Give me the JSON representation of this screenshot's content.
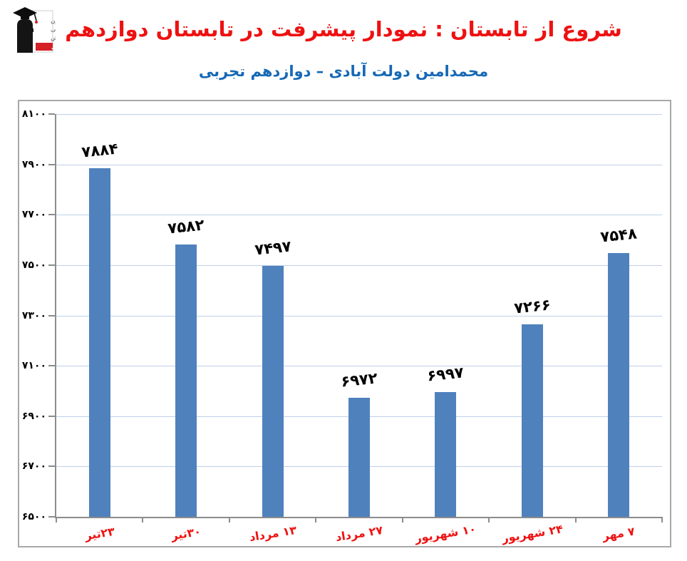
{
  "header": {
    "title": "شروع از تابستان : نمودار پیشرفت در تابستان دوازدهم",
    "subtitle": "محمدامین دولت آبادی – دوازدهم تجربی",
    "title_color": "#ee1111",
    "subtitle_color": "#1668b5",
    "logo": {
      "org_lines": [
        "کانون",
        "فرهنگی",
        "آموزش"
      ],
      "badge": "قلم چی"
    }
  },
  "chart_data": {
    "type": "bar",
    "title": "نمودار پیشرفت در تابستان دوازدهم",
    "categories": [
      "۲۳تیر",
      "۳۰تیر",
      "۱۳ مرداد",
      "۲۷ مرداد",
      "۱۰ شهریور",
      "۲۴ شهریور",
      "۷ مهر"
    ],
    "values": [
      7884,
      7582,
      7497,
      6972,
      6997,
      7266,
      7548
    ],
    "value_labels": [
      "۷۸۸۴",
      "۷۵۸۲",
      "۷۴۹۷",
      "۶۹۷۲",
      "۶۹۹۷",
      "۷۲۶۶",
      "۷۵۴۸"
    ],
    "ylim": [
      6500,
      8100
    ],
    "ytick_values": [
      8100,
      7900,
      7700,
      7500,
      7300,
      7100,
      6900,
      6700,
      6500
    ],
    "ytick_labels": [
      "۸۱۰۰",
      "۷۹۰۰",
      "۷۷۰۰",
      "۷۵۰۰",
      "۷۳۰۰",
      "۷۱۰۰",
      "۶۹۰۰",
      "۶۷۰۰",
      "۶۵۰۰"
    ],
    "grid": true,
    "legend": false,
    "xlabel": "",
    "ylabel": "",
    "colors": {
      "bar": "#4f81bd",
      "grid": "#bfd0e8",
      "axis": "#8c8c8c",
      "x_label": "#ee1111",
      "value_label": "#000000"
    }
  }
}
